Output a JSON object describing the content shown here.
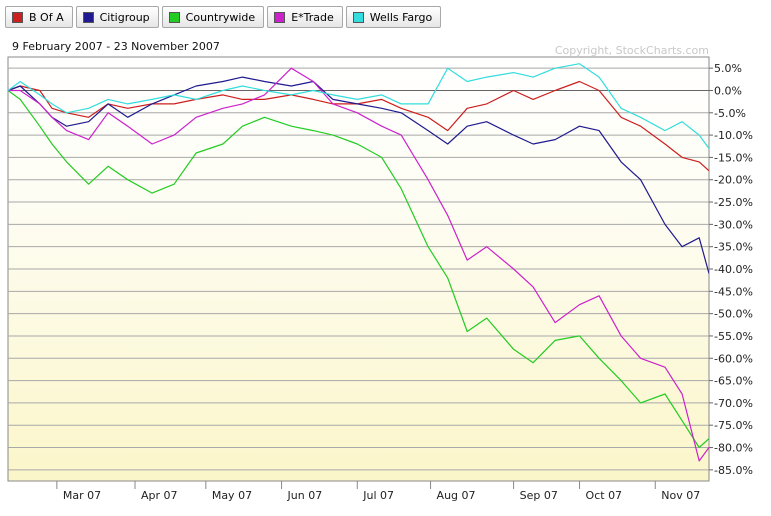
{
  "legend": [
    {
      "label": "B Of A",
      "color": "#cc1f1f"
    },
    {
      "label": "Citigroup",
      "color": "#1f1a8f"
    },
    {
      "label": "Countrywide",
      "color": "#22cc22"
    },
    {
      "label": "E*Trade",
      "color": "#cc22cc"
    },
    {
      "label": "Wells Fargo",
      "color": "#33dddd"
    }
  ],
  "chart_data": {
    "type": "line",
    "subtitle": "9 February 2007 - 23 November 2007",
    "copyright": "Copyright, StockCharts.com",
    "x_range": [
      "2007-02-09",
      "2007-11-23"
    ],
    "ylim": [
      -87.5,
      7.5
    ],
    "y_ticks": [
      "5.0%",
      "0.0%",
      "-5.0%",
      "-10.0%",
      "-15.0%",
      "-20.0%",
      "-25.0%",
      "-30.0%",
      "-35.0%",
      "-40.0%",
      "-45.0%",
      "-50.0%",
      "-55.0%",
      "-60.0%",
      "-65.0%",
      "-70.0%",
      "-75.0%",
      "-80.0%",
      "-85.0%"
    ],
    "y_tick_values": [
      5,
      0,
      -5,
      -10,
      -15,
      -20,
      -25,
      -30,
      -35,
      -40,
      -45,
      -50,
      -55,
      -60,
      -65,
      -70,
      -75,
      -80,
      -85
    ],
    "x_ticks": [
      "Mar 07",
      "Apr 07",
      "May 07",
      "Jun 07",
      "Jul 07",
      "Aug 07",
      "Sep 07",
      "Oct 07",
      "Nov 07"
    ],
    "x_tick_dates": [
      "2007-03-01",
      "2007-04-02",
      "2007-05-01",
      "2007-06-01",
      "2007-07-02",
      "2007-08-01",
      "2007-09-04",
      "2007-10-01",
      "2007-11-01"
    ],
    "grid": true,
    "legend_position": "top",
    "series": [
      {
        "name": "B Of A",
        "color": "#cc1f1f",
        "points": [
          [
            "2007-02-09",
            0
          ],
          [
            "2007-02-14",
            1
          ],
          [
            "2007-02-22",
            0
          ],
          [
            "2007-02-27",
            -4
          ],
          [
            "2007-03-05",
            -5
          ],
          [
            "2007-03-14",
            -6
          ],
          [
            "2007-03-22",
            -3
          ],
          [
            "2007-03-30",
            -4
          ],
          [
            "2007-04-09",
            -3
          ],
          [
            "2007-04-18",
            -3
          ],
          [
            "2007-04-27",
            -2
          ],
          [
            "2007-05-08",
            -1
          ],
          [
            "2007-05-16",
            -2
          ],
          [
            "2007-05-25",
            -2
          ],
          [
            "2007-06-05",
            -1
          ],
          [
            "2007-06-14",
            -2
          ],
          [
            "2007-06-22",
            -3
          ],
          [
            "2007-07-02",
            -3
          ],
          [
            "2007-07-12",
            -2
          ],
          [
            "2007-07-20",
            -4
          ],
          [
            "2007-07-31",
            -6
          ],
          [
            "2007-08-08",
            -9
          ],
          [
            "2007-08-16",
            -4
          ],
          [
            "2007-08-24",
            -3
          ],
          [
            "2007-09-04",
            0
          ],
          [
            "2007-09-12",
            -2
          ],
          [
            "2007-09-21",
            0
          ],
          [
            "2007-10-01",
            2
          ],
          [
            "2007-10-09",
            0
          ],
          [
            "2007-10-18",
            -6
          ],
          [
            "2007-10-26",
            -8
          ],
          [
            "2007-11-05",
            -12
          ],
          [
            "2007-11-12",
            -15
          ],
          [
            "2007-11-19",
            -16
          ],
          [
            "2007-11-23",
            -18
          ]
        ]
      },
      {
        "name": "Citigroup",
        "color": "#1f1a8f",
        "points": [
          [
            "2007-02-09",
            0
          ],
          [
            "2007-02-14",
            1
          ],
          [
            "2007-02-22",
            -3
          ],
          [
            "2007-02-27",
            -6
          ],
          [
            "2007-03-05",
            -8
          ],
          [
            "2007-03-14",
            -7
          ],
          [
            "2007-03-22",
            -3
          ],
          [
            "2007-03-30",
            -6
          ],
          [
            "2007-04-09",
            -3
          ],
          [
            "2007-04-18",
            -1
          ],
          [
            "2007-04-27",
            1
          ],
          [
            "2007-05-08",
            2
          ],
          [
            "2007-05-16",
            3
          ],
          [
            "2007-05-25",
            2
          ],
          [
            "2007-06-05",
            1
          ],
          [
            "2007-06-14",
            2
          ],
          [
            "2007-06-22",
            -2
          ],
          [
            "2007-07-02",
            -3
          ],
          [
            "2007-07-12",
            -4
          ],
          [
            "2007-07-20",
            -5
          ],
          [
            "2007-07-31",
            -9
          ],
          [
            "2007-08-08",
            -12
          ],
          [
            "2007-08-16",
            -8
          ],
          [
            "2007-08-24",
            -7
          ],
          [
            "2007-09-04",
            -10
          ],
          [
            "2007-09-12",
            -12
          ],
          [
            "2007-09-21",
            -11
          ],
          [
            "2007-10-01",
            -8
          ],
          [
            "2007-10-09",
            -9
          ],
          [
            "2007-10-18",
            -16
          ],
          [
            "2007-10-26",
            -20
          ],
          [
            "2007-11-05",
            -30
          ],
          [
            "2007-11-12",
            -35
          ],
          [
            "2007-11-19",
            -33
          ],
          [
            "2007-11-23",
            -41
          ]
        ]
      },
      {
        "name": "Countrywide",
        "color": "#22cc22",
        "points": [
          [
            "2007-02-09",
            0
          ],
          [
            "2007-02-14",
            -2
          ],
          [
            "2007-02-22",
            -8
          ],
          [
            "2007-02-27",
            -12
          ],
          [
            "2007-03-05",
            -16
          ],
          [
            "2007-03-14",
            -21
          ],
          [
            "2007-03-22",
            -17
          ],
          [
            "2007-03-30",
            -20
          ],
          [
            "2007-04-09",
            -23
          ],
          [
            "2007-04-18",
            -21
          ],
          [
            "2007-04-27",
            -14
          ],
          [
            "2007-05-08",
            -12
          ],
          [
            "2007-05-16",
            -8
          ],
          [
            "2007-05-25",
            -6
          ],
          [
            "2007-06-05",
            -8
          ],
          [
            "2007-06-14",
            -9
          ],
          [
            "2007-06-22",
            -10
          ],
          [
            "2007-07-02",
            -12
          ],
          [
            "2007-07-12",
            -15
          ],
          [
            "2007-07-20",
            -22
          ],
          [
            "2007-07-31",
            -35
          ],
          [
            "2007-08-08",
            -42
          ],
          [
            "2007-08-16",
            -54
          ],
          [
            "2007-08-24",
            -51
          ],
          [
            "2007-09-04",
            -58
          ],
          [
            "2007-09-12",
            -61
          ],
          [
            "2007-09-21",
            -56
          ],
          [
            "2007-10-01",
            -55
          ],
          [
            "2007-10-09",
            -60
          ],
          [
            "2007-10-18",
            -65
          ],
          [
            "2007-10-26",
            -70
          ],
          [
            "2007-11-05",
            -68
          ],
          [
            "2007-11-12",
            -74
          ],
          [
            "2007-11-19",
            -80
          ],
          [
            "2007-11-23",
            -78
          ]
        ]
      },
      {
        "name": "E*Trade",
        "color": "#cc22cc",
        "points": [
          [
            "2007-02-09",
            0
          ],
          [
            "2007-02-14",
            0
          ],
          [
            "2007-02-22",
            -3
          ],
          [
            "2007-02-27",
            -6
          ],
          [
            "2007-03-05",
            -9
          ],
          [
            "2007-03-14",
            -11
          ],
          [
            "2007-03-22",
            -5
          ],
          [
            "2007-03-30",
            -8
          ],
          [
            "2007-04-09",
            -12
          ],
          [
            "2007-04-18",
            -10
          ],
          [
            "2007-04-27",
            -6
          ],
          [
            "2007-05-08",
            -4
          ],
          [
            "2007-05-16",
            -3
          ],
          [
            "2007-05-25",
            -1
          ],
          [
            "2007-06-05",
            5
          ],
          [
            "2007-06-14",
            2
          ],
          [
            "2007-06-22",
            -3
          ],
          [
            "2007-07-02",
            -5
          ],
          [
            "2007-07-12",
            -8
          ],
          [
            "2007-07-20",
            -10
          ],
          [
            "2007-07-31",
            -20
          ],
          [
            "2007-08-08",
            -28
          ],
          [
            "2007-08-16",
            -38
          ],
          [
            "2007-08-24",
            -35
          ],
          [
            "2007-09-04",
            -40
          ],
          [
            "2007-09-12",
            -44
          ],
          [
            "2007-09-21",
            -52
          ],
          [
            "2007-10-01",
            -48
          ],
          [
            "2007-10-09",
            -46
          ],
          [
            "2007-10-18",
            -55
          ],
          [
            "2007-10-26",
            -60
          ],
          [
            "2007-11-05",
            -62
          ],
          [
            "2007-11-12",
            -68
          ],
          [
            "2007-11-19",
            -83
          ],
          [
            "2007-11-23",
            -80
          ]
        ]
      },
      {
        "name": "Wells Fargo",
        "color": "#33dddd",
        "points": [
          [
            "2007-02-09",
            0
          ],
          [
            "2007-02-14",
            2
          ],
          [
            "2007-02-22",
            -1
          ],
          [
            "2007-02-27",
            -3
          ],
          [
            "2007-03-05",
            -5
          ],
          [
            "2007-03-14",
            -4
          ],
          [
            "2007-03-22",
            -2
          ],
          [
            "2007-03-30",
            -3
          ],
          [
            "2007-04-09",
            -2
          ],
          [
            "2007-04-18",
            -1
          ],
          [
            "2007-04-27",
            -2
          ],
          [
            "2007-05-08",
            0
          ],
          [
            "2007-05-16",
            1
          ],
          [
            "2007-05-25",
            0
          ],
          [
            "2007-06-05",
            -1
          ],
          [
            "2007-06-14",
            0
          ],
          [
            "2007-06-22",
            -1
          ],
          [
            "2007-07-02",
            -2
          ],
          [
            "2007-07-12",
            -1
          ],
          [
            "2007-07-20",
            -3
          ],
          [
            "2007-07-31",
            -3
          ],
          [
            "2007-08-08",
            5
          ],
          [
            "2007-08-16",
            2
          ],
          [
            "2007-08-24",
            3
          ],
          [
            "2007-09-04",
            4
          ],
          [
            "2007-09-12",
            3
          ],
          [
            "2007-09-21",
            5
          ],
          [
            "2007-10-01",
            6
          ],
          [
            "2007-10-09",
            3
          ],
          [
            "2007-10-18",
            -4
          ],
          [
            "2007-10-26",
            -6
          ],
          [
            "2007-11-05",
            -9
          ],
          [
            "2007-11-12",
            -7
          ],
          [
            "2007-11-19",
            -10
          ],
          [
            "2007-11-23",
            -13
          ]
        ]
      }
    ]
  }
}
